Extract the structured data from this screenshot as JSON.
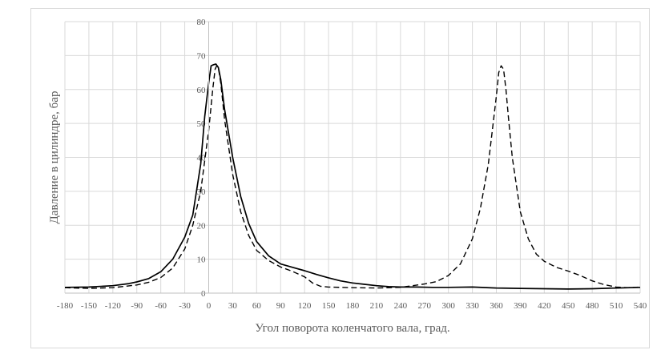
{
  "chart_data": {
    "type": "line",
    "xlabel": "Угол поворота коленчатого вала, град.",
    "ylabel": "Давление в цилиндре, бар",
    "xlim": [
      -180,
      540
    ],
    "ylim": [
      0,
      80
    ],
    "xticks": [
      "-180",
      "-150",
      "-120",
      "-90",
      "-60",
      "-30",
      "0",
      "30",
      "60",
      "90",
      "120",
      "150",
      "180",
      "210",
      "240",
      "270",
      "300",
      "330",
      "360",
      "390",
      "420",
      "450",
      "480",
      "510",
      "540"
    ],
    "yticks": [
      "0",
      "10",
      "20",
      "30",
      "40",
      "50",
      "60",
      "70",
      "80"
    ],
    "grid": true,
    "series": [
      {
        "style": "solid",
        "color": "#000000",
        "x": [
          -180,
          -150,
          -120,
          -100,
          -90,
          -75,
          -60,
          -45,
          -30,
          -20,
          -10,
          -5,
          0,
          3,
          6,
          9,
          12,
          15,
          20,
          30,
          40,
          50,
          60,
          75,
          90,
          105,
          120,
          135,
          150,
          165,
          180,
          195,
          210,
          225,
          240,
          260,
          280,
          300,
          330,
          360,
          390,
          420,
          450,
          480,
          510,
          540
        ],
        "y": [
          1.7,
          1.8,
          2.2,
          2.8,
          3.3,
          4.3,
          6.3,
          10,
          16.5,
          23,
          38,
          52,
          62,
          67,
          67.3,
          67.5,
          66.5,
          63,
          54,
          40,
          28.5,
          20.5,
          15.2,
          11,
          8.6,
          7.6,
          6.6,
          5.5,
          4.5,
          3.6,
          3,
          2.6,
          2.2,
          1.9,
          1.8,
          1.8,
          1.7,
          1.7,
          1.8,
          1.5,
          1.4,
          1.3,
          1.2,
          1.3,
          1.5,
          1.7
        ]
      },
      {
        "style": "dashed",
        "color": "#000000",
        "x": [
          -180,
          -150,
          -120,
          -90,
          -75,
          -60,
          -45,
          -30,
          -20,
          -10,
          0,
          5,
          8,
          10,
          12,
          15,
          20,
          30,
          40,
          50,
          60,
          75,
          90,
          105,
          120,
          130,
          140,
          150,
          165,
          180,
          210,
          240,
          270,
          285,
          300,
          315,
          330,
          340,
          350,
          355,
          360,
          363,
          366,
          369,
          372,
          375,
          380,
          390,
          400,
          410,
          420,
          435,
          450,
          465,
          480,
          495,
          510,
          525,
          540
        ],
        "y": [
          1.6,
          1.4,
          1.6,
          2.4,
          3.2,
          4.6,
          7.4,
          13,
          20,
          30,
          48,
          60,
          66,
          67,
          66.5,
          62,
          51,
          35,
          24,
          17,
          12.6,
          9.6,
          7.7,
          6.4,
          4.8,
          3,
          2,
          1.8,
          1.7,
          1.6,
          1.5,
          1.7,
          2.7,
          3.4,
          5.2,
          8.6,
          16,
          25,
          38,
          48,
          58,
          65,
          67,
          66,
          60,
          52,
          40,
          24,
          16,
          11.5,
          9.4,
          7.6,
          6.5,
          5.2,
          3.6,
          2.5,
          1.8,
          1.6,
          1.8
        ]
      }
    ]
  }
}
